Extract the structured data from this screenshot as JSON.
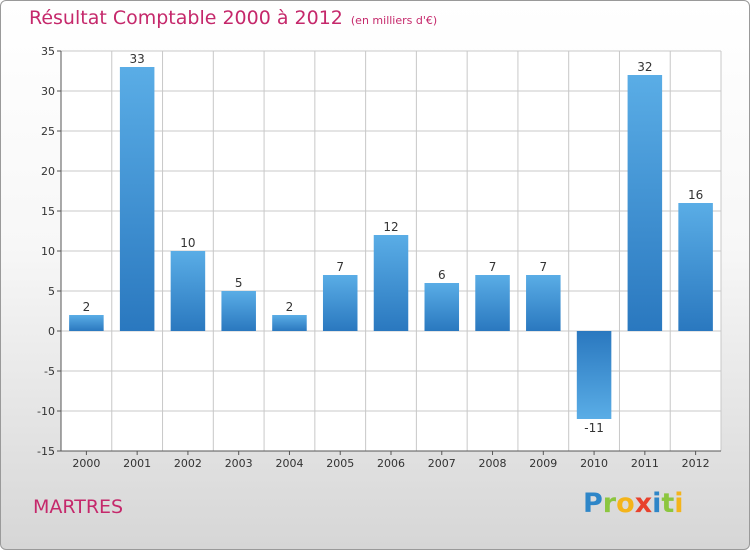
{
  "chart_data": {
    "type": "bar",
    "title": "Résultat Comptable 2000 à 2012",
    "subtitle": "(en milliers d'€)",
    "categories": [
      "2000",
      "2001",
      "2002",
      "2003",
      "2004",
      "2005",
      "2006",
      "2007",
      "2008",
      "2009",
      "2010",
      "2011",
      "2012"
    ],
    "values": [
      2,
      33,
      10,
      5,
      2,
      7,
      12,
      6,
      7,
      7,
      -11,
      32,
      16
    ],
    "data_labels": [
      "2",
      "33",
      "10",
      "5",
      "2",
      "7",
      "12",
      "6",
      "7",
      "7",
      "-11",
      "32",
      "16"
    ],
    "ylim": [
      -15,
      35
    ],
    "yticks": [
      -15,
      -10,
      -5,
      0,
      5,
      10,
      15,
      20,
      25,
      30,
      35
    ],
    "ytick_labels": [
      "-15",
      "-10",
      "-5",
      "0",
      "5",
      "10",
      "15",
      "20",
      "25",
      "30",
      "35"
    ],
    "grid": true,
    "xlabel": "",
    "ylabel": ""
  },
  "colors": {
    "title": "#c5286b",
    "bar_light": "#5aade6",
    "bar_dark": "#2a78bf",
    "grid": "#c8c8c8",
    "axis": "#555555"
  },
  "commune": "MARTRES",
  "logo": {
    "letters": [
      "P",
      "r",
      "o",
      "x",
      "i",
      "t",
      "i"
    ],
    "colors": [
      "#2e86c8",
      "#8cc63f",
      "#f4b41a",
      "#e8412c",
      "#2e86c8",
      "#8cc63f",
      "#f4b41a"
    ]
  }
}
